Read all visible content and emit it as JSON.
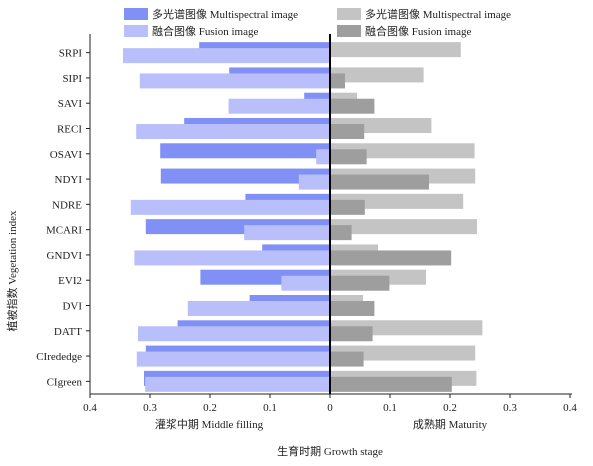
{
  "chart_data": {
    "type": "bar",
    "orientation": "horizontal",
    "categories": [
      "SRPI",
      "SIPI",
      "SAVI",
      "RECI",
      "OSAVI",
      "NDYI",
      "NDRE",
      "MCARI",
      "GNDVI",
      "EVI2",
      "DVI",
      "DATT",
      "CIrededge",
      "CIgreen"
    ],
    "xlabel": "生育时期 Growth stage",
    "ylabel": "植被指数 Vegetation index",
    "panels": [
      {
        "label": "灌浆中期 Middle filling",
        "direction": "left",
        "xlim": [
          0,
          0.4
        ],
        "ticks": [
          "0.4",
          "0.3",
          "0.2",
          "0.1",
          "0"
        ],
        "series": [
          {
            "name": "多光谱图像 Multispectral image",
            "color": "#8090f4",
            "values": [
              0.218,
              0.168,
              0.043,
              0.243,
              0.283,
              0.282,
              0.141,
              0.307,
              0.113,
              0.216,
              0.134,
              0.254,
              0.307,
              0.31
            ]
          },
          {
            "name": "融合图像 Fusion image",
            "color": "#b8bffa",
            "values": [
              0.345,
              0.317,
              0.169,
              0.323,
              0.023,
              0.052,
              0.332,
              0.143,
              0.326,
              0.081,
              0.237,
              0.32,
              0.322,
              0.308
            ]
          }
        ]
      },
      {
        "label": "成熟期 Maturity",
        "direction": "right",
        "xlim": [
          0,
          0.4
        ],
        "ticks": [
          "0",
          "0.1",
          "0.2",
          "0.3",
          "0.4"
        ],
        "series": [
          {
            "name": "多光谱图像 Multispectral image",
            "color": "#c4c4c4",
            "values": [
              0.218,
              0.156,
              0.045,
              0.169,
              0.241,
              0.242,
              0.222,
              0.245,
              0.08,
              0.16,
              0.055,
              0.254,
              0.242,
              0.244
            ]
          },
          {
            "name": "融合图像 Fusion image",
            "color": "#9e9e9e",
            "values": [
              0.0,
              0.025,
              0.074,
              0.057,
              0.061,
              0.165,
              0.058,
              0.036,
              0.202,
              0.099,
              0.074,
              0.071,
              0.056,
              0.203
            ]
          }
        ]
      }
    ],
    "legend": [
      {
        "label": "多光谱图像 Multispectral image",
        "color": "#8090f4"
      },
      {
        "label": "融合图像 Fusion image",
        "color": "#b8bffa"
      },
      {
        "label": "多光谱图像 Multispectral image",
        "color": "#c4c4c4"
      },
      {
        "label": "融合图像 Fusion image",
        "color": "#9e9e9e"
      }
    ],
    "legend_position": "top",
    "grid": false
  }
}
